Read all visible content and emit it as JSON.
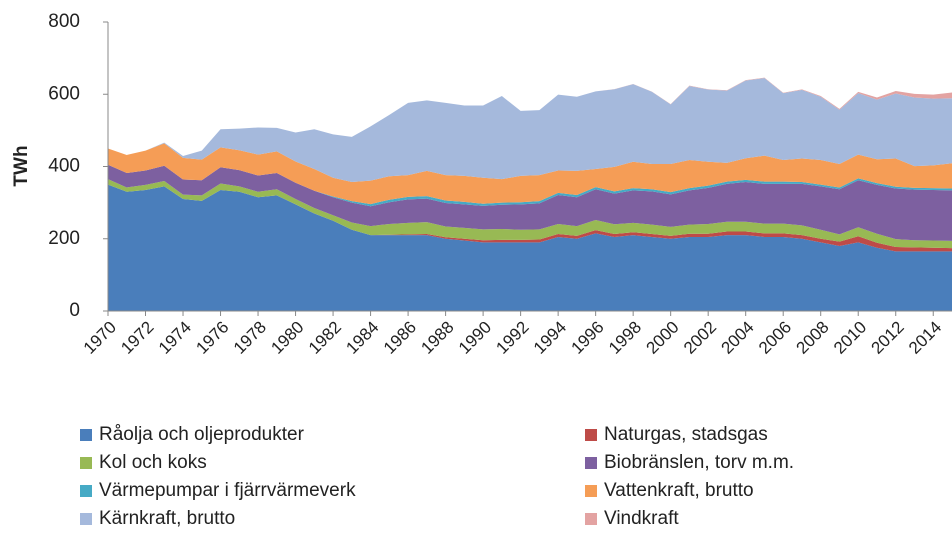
{
  "chart_data": {
    "type": "stacked_area",
    "y_label": "TWh",
    "x": [
      1970,
      1971,
      1972,
      1973,
      1974,
      1975,
      1976,
      1977,
      1978,
      1979,
      1980,
      1981,
      1982,
      1983,
      1984,
      1985,
      1986,
      1987,
      1988,
      1989,
      1990,
      1991,
      1992,
      1993,
      1994,
      1995,
      1996,
      1997,
      1998,
      1999,
      2000,
      2001,
      2002,
      2003,
      2004,
      2005,
      2006,
      2007,
      2008,
      2009,
      2010,
      2011,
      2012,
      2013,
      2014,
      2015
    ],
    "xlim": [
      1970,
      2015
    ],
    "xticks": [
      1970,
      1972,
      1974,
      1976,
      1978,
      1980,
      1982,
      1984,
      1986,
      1988,
      1990,
      1992,
      1994,
      1996,
      1998,
      2000,
      2002,
      2004,
      2006,
      2008,
      2010,
      2012,
      2014
    ],
    "ylim": [
      0,
      800
    ],
    "yticks": [
      0,
      200,
      400,
      600,
      800
    ],
    "grid": false,
    "series": [
      {
        "name": "Råolja och oljeprodukter",
        "color": "#4a7ebb",
        "values": [
          350,
          330,
          335,
          345,
          310,
          305,
          335,
          330,
          315,
          320,
          295,
          270,
          250,
          225,
          210,
          210,
          210,
          210,
          200,
          195,
          190,
          190,
          190,
          190,
          205,
          200,
          215,
          205,
          210,
          205,
          200,
          205,
          205,
          210,
          210,
          205,
          205,
          200,
          190,
          180,
          190,
          175,
          165,
          165,
          165,
          165
        ]
      },
      {
        "name": "Naturgas, stadsgas",
        "color": "#be4b48",
        "values": [
          0,
          0,
          0,
          0,
          0,
          0,
          0,
          0,
          0,
          0,
          0,
          0,
          0,
          0,
          0,
          1,
          2,
          3,
          4,
          5,
          6,
          7,
          7,
          8,
          8,
          8,
          9,
          8,
          8,
          8,
          8,
          9,
          9,
          10,
          10,
          10,
          10,
          10,
          10,
          12,
          17,
          14,
          12,
          11,
          10,
          9
        ]
      },
      {
        "name": "Kol och koks",
        "color": "#98b954",
        "values": [
          15,
          12,
          14,
          15,
          12,
          15,
          18,
          15,
          15,
          17,
          15,
          15,
          15,
          20,
          25,
          30,
          32,
          33,
          30,
          30,
          30,
          30,
          28,
          28,
          28,
          27,
          28,
          27,
          26,
          26,
          25,
          25,
          27,
          27,
          27,
          27,
          27,
          27,
          25,
          20,
          25,
          25,
          22,
          20,
          20,
          20
        ]
      },
      {
        "name": "Biobränslen, torv m.m.",
        "color": "#7d60a0",
        "values": [
          40,
          40,
          40,
          42,
          42,
          42,
          45,
          45,
          45,
          45,
          45,
          48,
          50,
          55,
          55,
          60,
          65,
          65,
          65,
          65,
          65,
          67,
          70,
          72,
          80,
          80,
          85,
          85,
          90,
          92,
          90,
          95,
          100,
          105,
          110,
          110,
          110,
          115,
          120,
          125,
          130,
          135,
          140,
          140,
          140,
          140
        ]
      },
      {
        "name": "Värmepumpar i fjärrvärmeverk",
        "color": "#46aac5",
        "values": [
          0,
          0,
          0,
          0,
          0,
          0,
          0,
          0,
          0,
          0,
          0,
          0,
          2,
          4,
          6,
          7,
          7,
          7,
          7,
          7,
          6,
          6,
          6,
          6,
          6,
          6,
          6,
          6,
          6,
          6,
          6,
          6,
          6,
          6,
          6,
          6,
          6,
          5,
          5,
          5,
          5,
          5,
          5,
          5,
          5,
          5
        ]
      },
      {
        "name": "Vattenkraft, brutto",
        "color": "#f59d56",
        "values": [
          45,
          50,
          55,
          62,
          60,
          57,
          55,
          55,
          58,
          60,
          59,
          60,
          52,
          53,
          65,
          65,
          60,
          70,
          70,
          72,
          72,
          65,
          73,
          72,
          62,
          67,
          50,
          68,
          73,
          70,
          78,
          78,
          66,
          52,
          60,
          72,
          60,
          65,
          68,
          65,
          66,
          66,
          78,
          60,
          63,
          70
        ]
      },
      {
        "name": "Kärnkraft, brutto",
        "color": "#a5b9dc",
        "values": [
          0,
          0,
          0,
          2,
          5,
          25,
          50,
          60,
          75,
          65,
          80,
          110,
          120,
          125,
          150,
          170,
          200,
          195,
          200,
          195,
          200,
          230,
          180,
          180,
          210,
          205,
          215,
          215,
          215,
          200,
          165,
          205,
          200,
          200,
          215,
          215,
          185,
          190,
          175,
          150,
          170,
          165,
          180,
          190,
          185,
          180
        ]
      },
      {
        "name": "Vindkraft",
        "color": "#e3a3a2",
        "values": [
          0,
          0,
          0,
          0,
          0,
          0,
          0,
          0,
          0,
          0,
          0,
          0,
          0,
          0,
          0,
          0,
          0,
          0,
          0,
          0,
          0,
          0,
          0,
          0,
          0,
          0.1,
          0.1,
          0.2,
          0.3,
          0.4,
          0.5,
          1,
          1,
          1,
          1,
          1,
          1,
          1.4,
          2,
          2.5,
          3.5,
          6,
          7,
          10,
          11,
          16
        ]
      }
    ]
  }
}
